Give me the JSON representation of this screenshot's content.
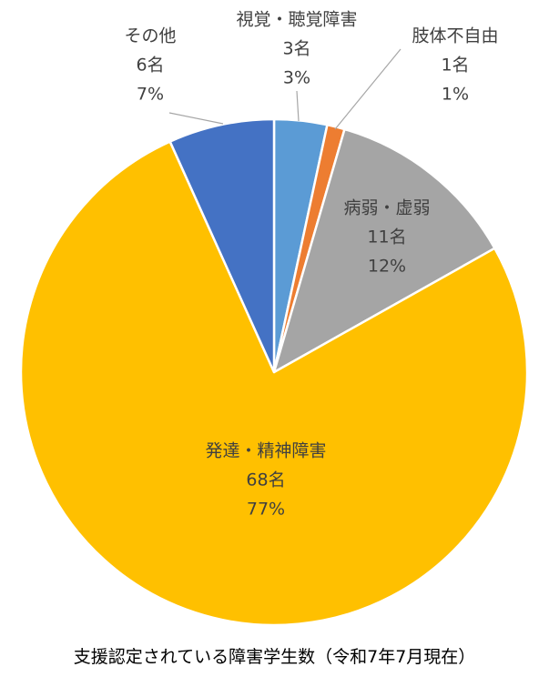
{
  "chart_data": {
    "type": "pie",
    "caption": "支援認定されている障害学生数（令和7年7月現在）",
    "slices": [
      {
        "category": "視覚・聴覚障害",
        "count": 3,
        "count_label": "3名",
        "percent_label": "3%",
        "color": "#5b9bd5"
      },
      {
        "category": "肢体不自由",
        "count": 1,
        "count_label": "1名",
        "percent_label": "1%",
        "color": "#ed7d31"
      },
      {
        "category": "病弱・虚弱",
        "count": 11,
        "count_label": "11名",
        "percent_label": "12%",
        "color": "#a5a5a5"
      },
      {
        "category": "発達・精神障害",
        "count": 68,
        "count_label": "68名",
        "percent_label": "77%",
        "color": "#ffc000"
      },
      {
        "category": "その他",
        "count": 6,
        "count_label": "6名",
        "percent_label": "7%",
        "color": "#4472c4"
      }
    ],
    "start_angle": "12 o'clock",
    "direction": "clockwise",
    "legend": "none"
  }
}
